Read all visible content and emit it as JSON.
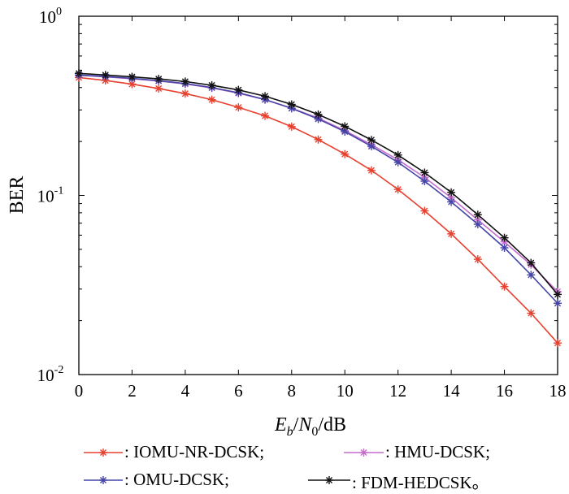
{
  "chart_data": {
    "type": "line",
    "ylabel": "BER",
    "xlabel_parts": {
      "main": "E",
      "sub": "b",
      "sep": "/",
      "main2": "N",
      "sub2": "0",
      "unit": "/dB"
    },
    "xlim": [
      0,
      18
    ],
    "ylim": [
      0.01,
      1
    ],
    "yscale": "log",
    "grid": false,
    "legend_position": "bottom",
    "x_ticks": [
      "0",
      "2",
      "4",
      "6",
      "8",
      "10",
      "12",
      "14",
      "16",
      "18"
    ],
    "y_ticks": [
      {
        "base": "10",
        "exp": "0",
        "value": 1
      },
      {
        "base": "10",
        "exp": "-1",
        "value": 0.1
      },
      {
        "base": "10",
        "exp": "-2",
        "value": 0.01
      }
    ],
    "x": [
      0,
      1,
      2,
      3,
      4,
      5,
      6,
      7,
      8,
      9,
      10,
      11,
      12,
      13,
      14,
      15,
      16,
      17,
      18
    ],
    "series": [
      {
        "name": ": IOMU-NR-DCSK;",
        "color": "#e8402e",
        "values": [
          0.455,
          0.438,
          0.418,
          0.395,
          0.37,
          0.342,
          0.31,
          0.278,
          0.242,
          0.205,
          0.17,
          0.138,
          0.108,
          0.082,
          0.061,
          0.044,
          0.031,
          0.022,
          0.015
        ]
      },
      {
        "name": ": HMU-DCSK;",
        "color": "#c66ccd",
        "values": [
          0.468,
          0.459,
          0.448,
          0.435,
          0.419,
          0.398,
          0.372,
          0.342,
          0.307,
          0.27,
          0.23,
          0.192,
          0.158,
          0.126,
          0.097,
          0.073,
          0.055,
          0.041,
          0.029
        ]
      },
      {
        "name": ": OMU-DCSK;",
        "color": "#4545a8",
        "values": [
          0.47,
          0.461,
          0.45,
          0.437,
          0.421,
          0.4,
          0.374,
          0.343,
          0.306,
          0.267,
          0.227,
          0.188,
          0.153,
          0.12,
          0.092,
          0.069,
          0.051,
          0.036,
          0.025
        ]
      },
      {
        "name": ": FDM-HEDCSK。",
        "color": "#111111",
        "values": [
          0.48,
          0.47,
          0.459,
          0.447,
          0.432,
          0.412,
          0.388,
          0.358,
          0.322,
          0.283,
          0.243,
          0.204,
          0.168,
          0.134,
          0.104,
          0.078,
          0.058,
          0.042,
          0.028
        ]
      }
    ]
  }
}
